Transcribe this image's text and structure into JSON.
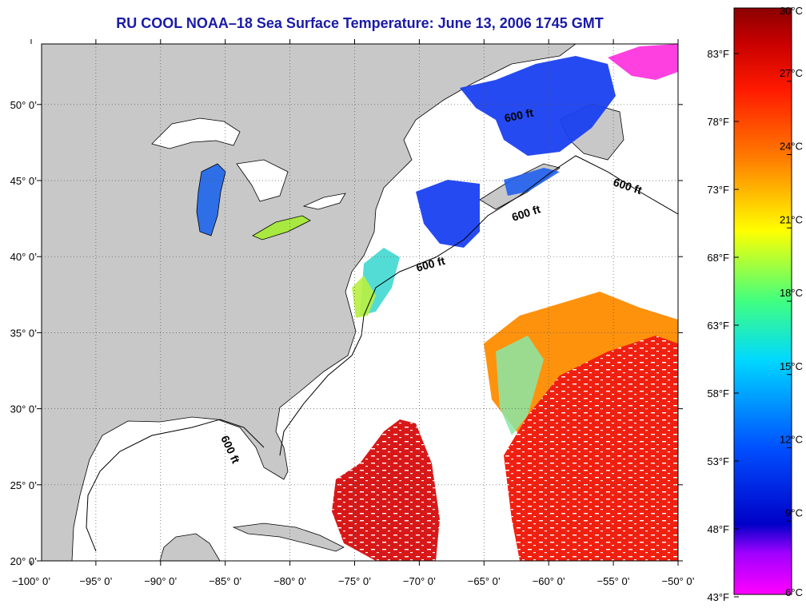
{
  "title": "RU COOL  NOAA–18  Sea Surface Temperature:  June 13, 2006 1745 GMT",
  "map": {
    "lon_ticks": [
      "−100° 0’",
      "−95° 0’",
      "−90° 0’",
      "−85° 0’",
      "−80° 0’",
      "−75° 0’",
      "−70° 0’",
      "−65° 0’",
      "−60° 0’",
      "−55° 0’",
      "−50° 0’"
    ],
    "lat_ticks": [
      "20° 0’",
      "25° 0’",
      "30° 0’",
      "35° 0’",
      "40° 0’",
      "45° 0’",
      "50° 0’"
    ],
    "contour_label": "600 ft",
    "land_color": "#c8c8c8"
  },
  "colorbar": {
    "celsius": [
      "30°C",
      "27°C",
      "24°C",
      "21°C",
      "18°C",
      "15°C",
      "12°C",
      "9°C",
      "6°C"
    ],
    "fahrenheit": [
      "83°F",
      "78°F",
      "73°F",
      "68°F",
      "63°F",
      "58°F",
      "53°F",
      "48°F",
      "43°F"
    ]
  }
}
